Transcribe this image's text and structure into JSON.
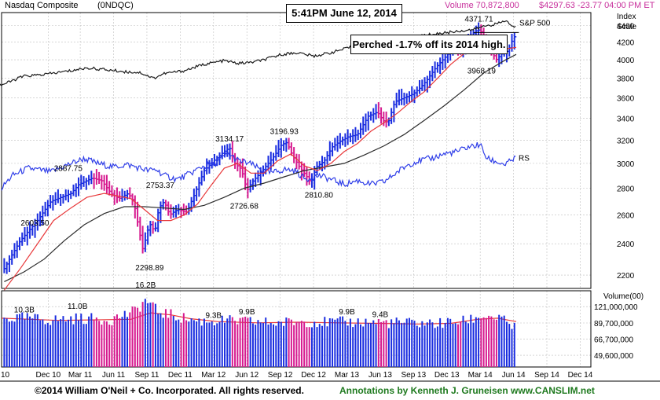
{
  "header": {
    "name": "Nasdaq Composite",
    "symbol": "(0NDQC)",
    "volume": "Volume 70,872,800",
    "price": "$4297.63 -23.77  04:00 PM ET"
  },
  "timestamp_box": "5:41PM  June 12, 2014",
  "annotation_box": "Perched -1.7% off its 2014 high.",
  "footer": {
    "copyright": "©2014 William O'Neil + Co. Incorporated. All rights reserved.",
    "annotations": "Annotations by Kenneth J. Gruneisen www.CANSLIM.net"
  },
  "colors": {
    "up_bar": "#1a2de0",
    "down_bar": "#d6198f",
    "sma50": "#e8383a",
    "sma200": "#2b2b2b",
    "rs_line": "#2f3ee8",
    "sp500_line": "#1a1a1a",
    "grid": "#bdbdbd"
  },
  "chart_data": {
    "type": "line",
    "price_axis": {
      "title_lines": [
        "Index",
        "Scale"
      ],
      "ticks": [
        2200,
        2400,
        2600,
        2800,
        3000,
        3200,
        3400,
        3600,
        3800,
        4000,
        4200,
        4400
      ],
      "scale": "log",
      "range": [
        2120,
        4560
      ]
    },
    "time_axis": {
      "range": [
        2010.58,
        2015.0
      ],
      "ticks": [
        {
          "label": "10",
          "t": 2010.55
        },
        {
          "label": "Dec 10",
          "t": 2010.93
        },
        {
          "label": "Mar 11",
          "t": 2011.17
        },
        {
          "label": "Jun 11",
          "t": 2011.42
        },
        {
          "label": "Sep 11",
          "t": 2011.67
        },
        {
          "label": "Dec 11",
          "t": 2011.92
        },
        {
          "label": "Mar 12",
          "t": 2012.17
        },
        {
          "label": "Jun 12",
          "t": 2012.42
        },
        {
          "label": "Sep 12",
          "t": 2012.67
        },
        {
          "label": "Dec 12",
          "t": 2012.92
        },
        {
          "label": "Mar 13",
          "t": 2013.17
        },
        {
          "label": "Jun 13",
          "t": 2013.42
        },
        {
          "label": "Sep 13",
          "t": 2013.67
        },
        {
          "label": "Dec 13",
          "t": 2013.92
        },
        {
          "label": "Mar 14",
          "t": 2014.17
        },
        {
          "label": "Jun 14",
          "t": 2014.42
        },
        {
          "label": "Sep 14",
          "t": 2014.67
        },
        {
          "label": "Dec 14",
          "t": 2014.92
        }
      ]
    },
    "price_anchors": [
      [
        2010.6,
        2240
      ],
      [
        2010.72,
        2420
      ],
      [
        2010.85,
        2560
      ],
      [
        2010.95,
        2700
      ],
      [
        2011.1,
        2760
      ],
      [
        2011.16,
        2830
      ],
      [
        2011.26,
        2880
      ],
      [
        2011.33,
        2860
      ],
      [
        2011.4,
        2760
      ],
      [
        2011.46,
        2720
      ],
      [
        2011.53,
        2760
      ],
      [
        2011.57,
        2700
      ],
      [
        2011.61,
        2500
      ],
      [
        2011.64,
        2360
      ],
      [
        2011.69,
        2540
      ],
      [
        2011.73,
        2480
      ],
      [
        2011.76,
        2650
      ],
      [
        2011.8,
        2700
      ],
      [
        2011.84,
        2600
      ],
      [
        2011.9,
        2640
      ],
      [
        2011.97,
        2620
      ],
      [
        2012.03,
        2760
      ],
      [
        2012.1,
        2940
      ],
      [
        2012.17,
        3020
      ],
      [
        2012.25,
        3100
      ],
      [
        2012.29,
        3134
      ],
      [
        2012.33,
        3000
      ],
      [
        2012.38,
        2950
      ],
      [
        2012.42,
        2780
      ],
      [
        2012.46,
        2850
      ],
      [
        2012.52,
        2920
      ],
      [
        2012.58,
        3000
      ],
      [
        2012.63,
        3070
      ],
      [
        2012.68,
        3160
      ],
      [
        2012.72,
        3180
      ],
      [
        2012.76,
        3070
      ],
      [
        2012.82,
        2960
      ],
      [
        2012.87,
        2890
      ],
      [
        2012.9,
        2840
      ],
      [
        2012.94,
        2970
      ],
      [
        2013.0,
        3020
      ],
      [
        2013.06,
        3140
      ],
      [
        2013.12,
        3190
      ],
      [
        2013.18,
        3230
      ],
      [
        2013.25,
        3250
      ],
      [
        2013.33,
        3420
      ],
      [
        2013.4,
        3460
      ],
      [
        2013.44,
        3380
      ],
      [
        2013.48,
        3360
      ],
      [
        2013.53,
        3560
      ],
      [
        2013.6,
        3600
      ],
      [
        2013.67,
        3640
      ],
      [
        2013.72,
        3700
      ],
      [
        2013.77,
        3780
      ],
      [
        2013.84,
        3920
      ],
      [
        2013.92,
        4050
      ],
      [
        2013.98,
        4160
      ],
      [
        2014.03,
        4120
      ],
      [
        2014.08,
        4230
      ],
      [
        2014.13,
        4330
      ],
      [
        2014.17,
        4350
      ],
      [
        2014.21,
        4200
      ],
      [
        2014.26,
        4080
      ],
      [
        2014.29,
        4000
      ],
      [
        2014.34,
        4080
      ],
      [
        2014.38,
        4100
      ],
      [
        2014.41,
        4220
      ],
      [
        2014.44,
        4297
      ]
    ],
    "rs_anchors": [
      [
        2010.58,
        2800
      ],
      [
        2010.66,
        2900
      ],
      [
        2010.78,
        2960
      ],
      [
        2010.95,
        2930
      ],
      [
        2011.1,
        3000
      ],
      [
        2011.2,
        3040
      ],
      [
        2011.3,
        3000
      ],
      [
        2011.42,
        2970
      ],
      [
        2011.52,
        2990
      ],
      [
        2011.62,
        2960
      ],
      [
        2011.68,
        2940
      ],
      [
        2011.74,
        2950
      ],
      [
        2011.8,
        2900
      ],
      [
        2011.9,
        2870
      ],
      [
        2012.0,
        2920
      ],
      [
        2012.08,
        2970
      ],
      [
        2012.18,
        3000
      ],
      [
        2012.28,
        3080
      ],
      [
        2012.36,
        3020
      ],
      [
        2012.44,
        3000
      ],
      [
        2012.52,
        2950
      ],
      [
        2012.6,
        2920
      ],
      [
        2012.7,
        2950
      ],
      [
        2012.78,
        2940
      ],
      [
        2012.86,
        2870
      ],
      [
        2012.96,
        2900
      ],
      [
        2013.05,
        2870
      ],
      [
        2013.15,
        2830
      ],
      [
        2013.25,
        2860
      ],
      [
        2013.35,
        2830
      ],
      [
        2013.45,
        2850
      ],
      [
        2013.55,
        2930
      ],
      [
        2013.63,
        2990
      ],
      [
        2013.7,
        3020
      ],
      [
        2013.8,
        3040
      ],
      [
        2013.9,
        3080
      ],
      [
        2014.0,
        3100
      ],
      [
        2014.08,
        3140
      ],
      [
        2014.17,
        3160
      ],
      [
        2014.22,
        3040
      ],
      [
        2014.3,
        3010
      ],
      [
        2014.36,
        2990
      ],
      [
        2014.44,
        3050
      ]
    ],
    "sp500_anchors": [
      [
        2010.55,
        3720
      ],
      [
        2010.62,
        3750
      ],
      [
        2010.74,
        3820
      ],
      [
        2010.9,
        3840
      ],
      [
        2011.1,
        3880
      ],
      [
        2011.22,
        3910
      ],
      [
        2011.3,
        3900
      ],
      [
        2011.5,
        3870
      ],
      [
        2011.62,
        3860
      ],
      [
        2011.72,
        3800
      ],
      [
        2011.8,
        3850
      ],
      [
        2011.95,
        3880
      ],
      [
        2012.1,
        3950
      ],
      [
        2012.25,
        3990
      ],
      [
        2012.35,
        3960
      ],
      [
        2012.45,
        3970
      ],
      [
        2012.55,
        4000
      ],
      [
        2012.68,
        4060
      ],
      [
        2012.8,
        4080
      ],
      [
        2012.92,
        4040
      ],
      [
        2013.05,
        4080
      ],
      [
        2013.2,
        4140
      ],
      [
        2013.35,
        4200
      ],
      [
        2013.45,
        4180
      ],
      [
        2013.55,
        4240
      ],
      [
        2013.7,
        4270
      ],
      [
        2013.85,
        4300
      ],
      [
        2014.0,
        4330
      ],
      [
        2014.12,
        4350
      ],
      [
        2014.22,
        4400
      ],
      [
        2014.3,
        4420
      ],
      [
        2014.36,
        4460
      ],
      [
        2014.42,
        4380
      ],
      [
        2014.44,
        4380
      ]
    ],
    "sma50_anchors": [
      [
        2010.6,
        2110
      ],
      [
        2010.72,
        2240
      ],
      [
        2010.85,
        2400
      ],
      [
        2010.97,
        2560
      ],
      [
        2011.1,
        2650
      ],
      [
        2011.22,
        2730
      ],
      [
        2011.35,
        2760
      ],
      [
        2011.45,
        2740
      ],
      [
        2011.55,
        2720
      ],
      [
        2011.65,
        2640
      ],
      [
        2011.75,
        2560
      ],
      [
        2011.85,
        2560
      ],
      [
        2011.95,
        2600
      ],
      [
        2012.05,
        2680
      ],
      [
        2012.15,
        2820
      ],
      [
        2012.25,
        2960
      ],
      [
        2012.35,
        3000
      ],
      [
        2012.45,
        2920
      ],
      [
        2012.55,
        2920
      ],
      [
        2012.65,
        3020
      ],
      [
        2012.75,
        3080
      ],
      [
        2012.85,
        2980
      ],
      [
        2012.95,
        2940
      ],
      [
        2013.05,
        3000
      ],
      [
        2013.15,
        3100
      ],
      [
        2013.25,
        3170
      ],
      [
        2013.35,
        3280
      ],
      [
        2013.45,
        3360
      ],
      [
        2013.55,
        3450
      ],
      [
        2013.65,
        3560
      ],
      [
        2013.75,
        3660
      ],
      [
        2013.85,
        3800
      ],
      [
        2013.95,
        3950
      ],
      [
        2014.05,
        4070
      ],
      [
        2014.15,
        4190
      ],
      [
        2014.25,
        4210
      ],
      [
        2014.35,
        4120
      ],
      [
        2014.44,
        4140
      ]
    ],
    "sma200_anchors": [
      [
        2010.6,
        2160
      ],
      [
        2010.75,
        2220
      ],
      [
        2010.9,
        2300
      ],
      [
        2011.05,
        2420
      ],
      [
        2011.2,
        2530
      ],
      [
        2011.35,
        2610
      ],
      [
        2011.5,
        2660
      ],
      [
        2011.65,
        2660
      ],
      [
        2011.8,
        2650
      ],
      [
        2011.95,
        2640
      ],
      [
        2012.1,
        2670
      ],
      [
        2012.25,
        2730
      ],
      [
        2012.4,
        2800
      ],
      [
        2012.55,
        2840
      ],
      [
        2012.7,
        2890
      ],
      [
        2012.85,
        2940
      ],
      [
        2013.0,
        2970
      ],
      [
        2013.15,
        3000
      ],
      [
        2013.3,
        3070
      ],
      [
        2013.45,
        3150
      ],
      [
        2013.6,
        3250
      ],
      [
        2013.75,
        3380
      ],
      [
        2013.9,
        3520
      ],
      [
        2014.05,
        3680
      ],
      [
        2014.2,
        3860
      ],
      [
        2014.35,
        3990
      ],
      [
        2014.44,
        4060
      ]
    ],
    "price_labels": [
      {
        "text": "2887.75",
        "t": 2011.08,
        "v": 2887.75,
        "pos": "above"
      },
      {
        "text": "2603.50",
        "t": 2010.83,
        "v": 2603.5,
        "pos": "below"
      },
      {
        "text": "2753.37",
        "t": 2011.77,
        "v": 2753.37,
        "pos": "above"
      },
      {
        "text": "2298.89",
        "t": 2011.69,
        "v": 2298.89,
        "pos": "below"
      },
      {
        "text": "3134.17",
        "t": 2012.29,
        "v": 3134.17,
        "pos": "above"
      },
      {
        "text": "2726.68",
        "t": 2012.4,
        "v": 2726.68,
        "pos": "below"
      },
      {
        "text": "3196.93",
        "t": 2012.7,
        "v": 3196.93,
        "pos": "above"
      },
      {
        "text": "2810.80",
        "t": 2012.96,
        "v": 2810.8,
        "pos": "below"
      },
      {
        "text": "4371.71",
        "t": 2014.16,
        "v": 4371.71,
        "pos": "above"
      },
      {
        "text": "3968.19",
        "t": 2014.18,
        "v": 3968.19,
        "pos": "below"
      }
    ],
    "line_labels": {
      "rs": "RS",
      "sp500": "S&P 500"
    },
    "volume_axis": {
      "title": "Volume(00)",
      "ticks": [
        {
          "label": "121,000,000",
          "v": 121000000
        },
        {
          "label": "89,700,000",
          "v": 89700000
        },
        {
          "label": "66,700,000",
          "v": 66700000
        },
        {
          "label": "49,600,000",
          "v": 49600000
        }
      ],
      "scale": "log",
      "range": [
        40000000,
        162000000
      ]
    },
    "volume_anchors": [
      [
        2010.58,
        96000000
      ],
      [
        2010.75,
        98000000
      ],
      [
        2010.95,
        94000000
      ],
      [
        2011.15,
        97000000
      ],
      [
        2011.4,
        95000000
      ],
      [
        2011.58,
        110000000
      ],
      [
        2011.66,
        135000000
      ],
      [
        2011.75,
        110000000
      ],
      [
        2011.9,
        100000000
      ],
      [
        2012.05,
        92000000
      ],
      [
        2012.25,
        93000000
      ],
      [
        2012.45,
        91000000
      ],
      [
        2012.65,
        89000000
      ],
      [
        2012.85,
        92000000
      ],
      [
        2013.05,
        90000000
      ],
      [
        2013.25,
        91000000
      ],
      [
        2013.45,
        90000000
      ],
      [
        2013.65,
        89000000
      ],
      [
        2013.85,
        88000000
      ],
      [
        2014.05,
        92000000
      ],
      [
        2014.2,
        102000000
      ],
      [
        2014.32,
        96000000
      ],
      [
        2014.44,
        80000000
      ]
    ],
    "volume_ma_anchors": [
      [
        2010.58,
        98000000
      ],
      [
        2010.8,
        96000000
      ],
      [
        2011.0,
        94000000
      ],
      [
        2011.3,
        95000000
      ],
      [
        2011.55,
        96000000
      ],
      [
        2011.7,
        108000000
      ],
      [
        2011.85,
        104000000
      ],
      [
        2012.0,
        97000000
      ],
      [
        2012.2,
        92000000
      ],
      [
        2012.5,
        90000000
      ],
      [
        2012.8,
        91000000
      ],
      [
        2013.1,
        90000000
      ],
      [
        2013.4,
        89000000
      ],
      [
        2013.7,
        88000000
      ],
      [
        2013.95,
        89000000
      ],
      [
        2014.15,
        96000000
      ],
      [
        2014.3,
        98000000
      ],
      [
        2014.44,
        92000000
      ]
    ],
    "volume_labels": [
      {
        "text": "10.3B",
        "t": 2010.75,
        "v": 103000000
      },
      {
        "text": "11.0B",
        "t": 2011.15,
        "v": 110000000
      },
      {
        "text": "16.2B",
        "t": 2011.66,
        "v": 162000000
      },
      {
        "text": "9.3B",
        "t": 2012.17,
        "v": 93000000
      },
      {
        "text": "9.9B",
        "t": 2012.42,
        "v": 99000000
      },
      {
        "text": "9.9B",
        "t": 2013.17,
        "v": 99000000
      },
      {
        "text": "9.4B",
        "t": 2013.42,
        "v": 94000000
      }
    ]
  }
}
